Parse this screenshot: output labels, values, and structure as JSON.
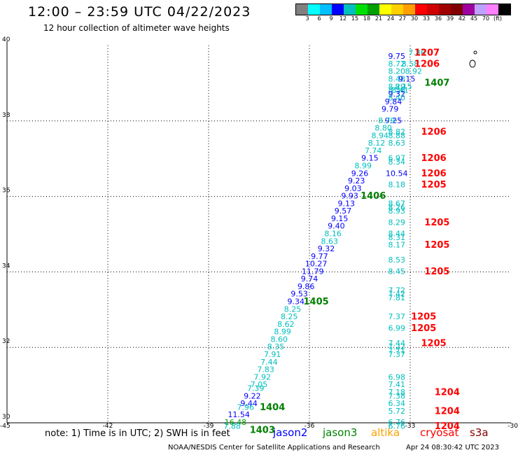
{
  "header": {
    "title": "12:00 – 23:59 UTC 04/22/2023",
    "subtitle": "12 hour collection of altimeter wave heights"
  },
  "colorbar": {
    "colors": [
      "#808080",
      "#00ffff",
      "#00bfff",
      "#0000ff",
      "#00bfbf",
      "#00e000",
      "#00a000",
      "#ffff00",
      "#ffd000",
      "#ffa000",
      "#ff0000",
      "#d00000",
      "#a00000",
      "#800000",
      "#a000a0",
      "#c0a0ff",
      "#ff80ff",
      "#000000"
    ],
    "labels": [
      "3",
      "6",
      "9",
      "12",
      "15",
      "18",
      "21",
      "24",
      "27",
      "30",
      "33",
      "36",
      "39",
      "42",
      "45",
      "70",
      "(ft)"
    ]
  },
  "legend": {
    "items": [
      {
        "label": "jason2",
        "color": "#0000ff"
      },
      {
        "label": "jason3",
        "color": "#008000"
      },
      {
        "label": "altika",
        "color": "#ffa000"
      },
      {
        "label": "cryosat",
        "color": "#ff0000"
      },
      {
        "label": "s3a",
        "color": "#800000"
      }
    ]
  },
  "footer": {
    "note": "note: 1) Time is in UTC; 2) SWH is in feet",
    "credit": "NOAA/NESDIS Center for Satellite Applications and Research",
    "timestamp": "Apr 24 08:30:42 UTC 2023"
  },
  "chart_data": {
    "type": "scatter",
    "xlim": [
      -45,
      -30
    ],
    "ylim": [
      30,
      40
    ],
    "x_ticks": [
      -45,
      -42,
      -39,
      -36,
      -33,
      -30
    ],
    "y_ticks": [
      30,
      32,
      34,
      36,
      38,
      40
    ],
    "grid": true,
    "points": [
      {
        "x": -32.8,
        "y": 39.8,
        "label": "7.86",
        "color": "#00bfbf"
      },
      {
        "x": -33.4,
        "y": 39.7,
        "label": "9.75",
        "color": "#0000ff"
      },
      {
        "x": -33.0,
        "y": 39.5,
        "label": "8.58",
        "color": "#00bfbf"
      },
      {
        "x": -33.4,
        "y": 39.5,
        "label": "8.72",
        "color": "#00bfbf"
      },
      {
        "x": -33.4,
        "y": 39.3,
        "label": "8.20",
        "color": "#00bfbf"
      },
      {
        "x": -32.9,
        "y": 39.3,
        "label": "8.92",
        "color": "#00bfbf"
      },
      {
        "x": -33.4,
        "y": 39.1,
        "label": "8.48",
        "color": "#00bfbf"
      },
      {
        "x": -33.1,
        "y": 39.1,
        "label": "9.15",
        "color": "#0000ff"
      },
      {
        "x": -33.2,
        "y": 38.9,
        "label": "8.15",
        "color": "#00bfbf"
      },
      {
        "x": -33.4,
        "y": 38.9,
        "label": "8.29",
        "color": "#00bfbf"
      },
      {
        "x": -33.3,
        "y": 38.8,
        "label": "8.41",
        "color": "#00bfbf"
      },
      {
        "x": -33.4,
        "y": 38.8,
        "label": "8.36",
        "color": "#00bfbf"
      },
      {
        "x": -33.4,
        "y": 38.7,
        "label": "9.32",
        "color": "#0000ff"
      },
      {
        "x": -33.4,
        "y": 38.6,
        "label": "8.40",
        "color": "#00bfbf"
      },
      {
        "x": -33.5,
        "y": 38.5,
        "label": "9.84",
        "color": "#0000ff"
      },
      {
        "x": -33.6,
        "y": 38.3,
        "label": "9.79",
        "color": "#0000ff"
      },
      {
        "x": -33.5,
        "y": 38.0,
        "label": "9.25",
        "color": "#0000ff"
      },
      {
        "x": -33.7,
        "y": 38.0,
        "label": "8.79",
        "color": "#00bfbf"
      },
      {
        "x": -33.8,
        "y": 37.8,
        "label": "8.80",
        "color": "#00bfbf"
      },
      {
        "x": -33.4,
        "y": 37.7,
        "label": "8.82",
        "color": "#00bfbf"
      },
      {
        "x": -33.9,
        "y": 37.6,
        "label": "8.94",
        "color": "#00bfbf"
      },
      {
        "x": -33.4,
        "y": 37.6,
        "label": "8.88",
        "color": "#00bfbf"
      },
      {
        "x": -34.0,
        "y": 37.4,
        "label": "8.12",
        "color": "#00bfbf"
      },
      {
        "x": -33.4,
        "y": 37.4,
        "label": "8.63",
        "color": "#00bfbf"
      },
      {
        "x": -34.1,
        "y": 37.2,
        "label": "7.74",
        "color": "#00bfbf"
      },
      {
        "x": -33.4,
        "y": 37.0,
        "label": "6.97",
        "color": "#00bfbf"
      },
      {
        "x": -34.2,
        "y": 37.0,
        "label": "9.15",
        "color": "#0000ff"
      },
      {
        "x": -33.4,
        "y": 36.9,
        "label": "8.34",
        "color": "#00bfbf"
      },
      {
        "x": -34.4,
        "y": 36.8,
        "label": "8.99",
        "color": "#00bfbf"
      },
      {
        "x": -34.5,
        "y": 36.6,
        "label": "9.26",
        "color": "#0000ff"
      },
      {
        "x": -33.4,
        "y": 36.6,
        "label": "10.54",
        "color": "#0000ff"
      },
      {
        "x": -34.6,
        "y": 36.4,
        "label": "9.23",
        "color": "#0000ff"
      },
      {
        "x": -33.4,
        "y": 36.3,
        "label": "8.18",
        "color": "#00bfbf"
      },
      {
        "x": -34.7,
        "y": 36.2,
        "label": "9.03",
        "color": "#0000ff"
      },
      {
        "x": -34.8,
        "y": 36.0,
        "label": "9.93",
        "color": "#0000ff"
      },
      {
        "x": -34.9,
        "y": 35.8,
        "label": "9.13",
        "color": "#0000ff"
      },
      {
        "x": -33.4,
        "y": 35.8,
        "label": "8.67",
        "color": "#00bfbf"
      },
      {
        "x": -33.4,
        "y": 35.7,
        "label": "8.26",
        "color": "#00bfbf"
      },
      {
        "x": -35.0,
        "y": 35.6,
        "label": "9.57",
        "color": "#0000ff"
      },
      {
        "x": -33.4,
        "y": 35.6,
        "label": "8.93",
        "color": "#00bfbf"
      },
      {
        "x": -35.1,
        "y": 35.4,
        "label": "9.15",
        "color": "#0000ff"
      },
      {
        "x": -33.4,
        "y": 35.3,
        "label": "8.29",
        "color": "#00bfbf"
      },
      {
        "x": -35.2,
        "y": 35.2,
        "label": "9.40",
        "color": "#0000ff"
      },
      {
        "x": -35.3,
        "y": 35.0,
        "label": "8.16",
        "color": "#00bfbf"
      },
      {
        "x": -33.4,
        "y": 35.0,
        "label": "8.44",
        "color": "#00bfbf"
      },
      {
        "x": -33.4,
        "y": 34.9,
        "label": "8.31",
        "color": "#00bfbf"
      },
      {
        "x": -35.4,
        "y": 34.8,
        "label": "8.63",
        "color": "#00bfbf"
      },
      {
        "x": -33.4,
        "y": 34.7,
        "label": "8.17",
        "color": "#00bfbf"
      },
      {
        "x": -35.5,
        "y": 34.6,
        "label": "9.32",
        "color": "#0000ff"
      },
      {
        "x": -35.7,
        "y": 34.4,
        "label": "9.77",
        "color": "#0000ff"
      },
      {
        "x": -33.4,
        "y": 34.3,
        "label": "8.53",
        "color": "#00bfbf"
      },
      {
        "x": -35.8,
        "y": 34.2,
        "label": "10.27",
        "color": "#0000ff"
      },
      {
        "x": -35.9,
        "y": 34.0,
        "label": "11.79",
        "color": "#0000ff"
      },
      {
        "x": -33.4,
        "y": 34.0,
        "label": "8.45",
        "color": "#00bfbf"
      },
      {
        "x": -36.0,
        "y": 33.8,
        "label": "9.74",
        "color": "#0000ff"
      },
      {
        "x": -36.1,
        "y": 33.6,
        "label": "9.86",
        "color": "#0000ff"
      },
      {
        "x": -33.4,
        "y": 33.5,
        "label": "7.72",
        "color": "#00bfbf"
      },
      {
        "x": -36.3,
        "y": 33.4,
        "label": "9.53",
        "color": "#0000ff"
      },
      {
        "x": -33.4,
        "y": 33.4,
        "label": "7.42",
        "color": "#00bfbf"
      },
      {
        "x": -33.4,
        "y": 33.3,
        "label": "7.81",
        "color": "#00bfbf"
      },
      {
        "x": -36.4,
        "y": 33.2,
        "label": "9.34",
        "color": "#0000ff"
      },
      {
        "x": -36.5,
        "y": 33.0,
        "label": "8.25",
        "color": "#00bfbf"
      },
      {
        "x": -36.6,
        "y": 32.8,
        "label": "8.25",
        "color": "#00bfbf"
      },
      {
        "x": -33.4,
        "y": 32.8,
        "label": "7.37",
        "color": "#00bfbf"
      },
      {
        "x": -36.7,
        "y": 32.6,
        "label": "8.62",
        "color": "#00bfbf"
      },
      {
        "x": -33.4,
        "y": 32.5,
        "label": "6.99",
        "color": "#00bfbf"
      },
      {
        "x": -36.8,
        "y": 32.4,
        "label": "8.99",
        "color": "#00bfbf"
      },
      {
        "x": -36.9,
        "y": 32.2,
        "label": "8.60",
        "color": "#00bfbf"
      },
      {
        "x": -33.4,
        "y": 32.1,
        "label": "7.44",
        "color": "#00bfbf"
      },
      {
        "x": -33.4,
        "y": 32.0,
        "label": "7.22",
        "color": "#00bfbf"
      },
      {
        "x": -37.0,
        "y": 32.0,
        "label": "8.35",
        "color": "#00bfbf"
      },
      {
        "x": -33.4,
        "y": 31.9,
        "label": "7.71",
        "color": "#00bfbf"
      },
      {
        "x": -37.1,
        "y": 31.8,
        "label": "7.91",
        "color": "#00bfbf"
      },
      {
        "x": -33.4,
        "y": 31.8,
        "label": "7.37",
        "color": "#00bfbf"
      },
      {
        "x": -37.2,
        "y": 31.6,
        "label": "7.44",
        "color": "#00bfbf"
      },
      {
        "x": -37.3,
        "y": 31.4,
        "label": "7.83",
        "color": "#00bfbf"
      },
      {
        "x": -37.4,
        "y": 31.2,
        "label": "7.92",
        "color": "#00bfbf"
      },
      {
        "x": -33.4,
        "y": 31.2,
        "label": "6.98",
        "color": "#00bfbf"
      },
      {
        "x": -37.5,
        "y": 31.0,
        "label": "7.05",
        "color": "#00bfbf"
      },
      {
        "x": -33.4,
        "y": 31.0,
        "label": "7.41",
        "color": "#00bfbf"
      },
      {
        "x": -37.6,
        "y": 30.9,
        "label": "7.39",
        "color": "#00bfbf"
      },
      {
        "x": -33.4,
        "y": 30.8,
        "label": "7.18",
        "color": "#00bfbf"
      },
      {
        "x": -37.7,
        "y": 30.7,
        "label": "9.22",
        "color": "#0000ff"
      },
      {
        "x": -33.4,
        "y": 30.7,
        "label": "7.38",
        "color": "#00bfbf"
      },
      {
        "x": -37.8,
        "y": 30.5,
        "label": "9.44",
        "color": "#0000ff"
      },
      {
        "x": -33.4,
        "y": 30.5,
        "label": "6.34",
        "color": "#00bfbf"
      },
      {
        "x": -37.9,
        "y": 30.4,
        "label": "7.96",
        "color": "#00bfbf"
      },
      {
        "x": -33.4,
        "y": 30.3,
        "label": "5.72",
        "color": "#00bfbf"
      },
      {
        "x": -38.1,
        "y": 30.2,
        "label": "11.54",
        "color": "#0000ff"
      },
      {
        "x": -38.2,
        "y": 30.0,
        "label": "16.48",
        "color": "#00a000"
      },
      {
        "x": -33.4,
        "y": 30.0,
        "label": "6.76",
        "color": "#00bfbf"
      },
      {
        "x": -38.3,
        "y": 29.9,
        "label": "7.88",
        "color": "#00bfbf"
      },
      {
        "x": -33.4,
        "y": 29.9,
        "label": "6.76",
        "color": "#00bfbf"
      }
    ],
    "time_labels": [
      {
        "x": -32.5,
        "y": 39.8,
        "label": "1207",
        "color": "#ff0000"
      },
      {
        "x": -32.5,
        "y": 39.5,
        "label": "1206",
        "color": "#ff0000"
      },
      {
        "x": -32.2,
        "y": 39.0,
        "label": "1407",
        "color": "#008000"
      },
      {
        "x": -32.3,
        "y": 37.7,
        "label": "1206",
        "color": "#ff0000"
      },
      {
        "x": -32.3,
        "y": 37.0,
        "label": "1206",
        "color": "#ff0000"
      },
      {
        "x": -32.3,
        "y": 36.6,
        "label": "1206",
        "color": "#ff0000"
      },
      {
        "x": -32.3,
        "y": 36.3,
        "label": "1205",
        "color": "#ff0000"
      },
      {
        "x": -34.1,
        "y": 36.0,
        "label": "1406",
        "color": "#008000"
      },
      {
        "x": -32.2,
        "y": 35.3,
        "label": "1205",
        "color": "#ff0000"
      },
      {
        "x": -32.2,
        "y": 34.7,
        "label": "1205",
        "color": "#ff0000"
      },
      {
        "x": -32.2,
        "y": 34.0,
        "label": "1205",
        "color": "#ff0000"
      },
      {
        "x": -35.8,
        "y": 33.2,
        "label": "1405",
        "color": "#008000"
      },
      {
        "x": -32.6,
        "y": 32.8,
        "label": "1205",
        "color": "#ff0000"
      },
      {
        "x": -32.6,
        "y": 32.5,
        "label": "1205",
        "color": "#ff0000"
      },
      {
        "x": -32.3,
        "y": 32.1,
        "label": "1205",
        "color": "#ff0000"
      },
      {
        "x": -31.9,
        "y": 30.8,
        "label": "1204",
        "color": "#ff0000"
      },
      {
        "x": -37.1,
        "y": 30.4,
        "label": "1404",
        "color": "#008000"
      },
      {
        "x": -31.9,
        "y": 30.3,
        "label": "1204",
        "color": "#ff0000"
      },
      {
        "x": -31.9,
        "y": 29.9,
        "label": "1204",
        "color": "#ff0000"
      },
      {
        "x": -37.4,
        "y": 29.8,
        "label": "1403",
        "color": "#008000"
      }
    ]
  }
}
